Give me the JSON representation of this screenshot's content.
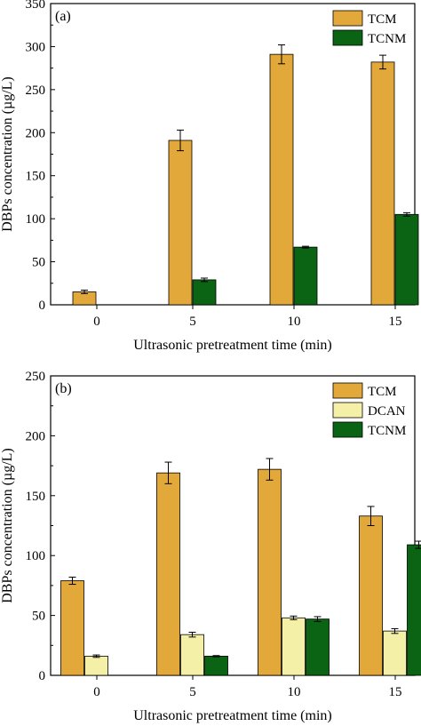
{
  "chart_data": [
    {
      "type": "bar",
      "panel_label": "(a)",
      "xlabel": "Ultrasonic pretreatment time (min)",
      "ylabel": "DBPs concentration (µg/L)",
      "categories": [
        "0",
        "5",
        "10",
        "15"
      ],
      "ylim": [
        0,
        350
      ],
      "yticks": [
        0,
        50,
        100,
        150,
        200,
        250,
        300,
        350
      ],
      "legend_position": "top-right",
      "grid": false,
      "series": [
        {
          "name": "TCM",
          "color": "#E2A93A",
          "values": [
            15,
            191,
            291,
            282
          ],
          "errors": [
            2,
            12,
            11,
            8
          ]
        },
        {
          "name": "TCNM",
          "color": "#0A6413",
          "values": [
            null,
            29,
            67,
            105
          ],
          "errors": [
            null,
            2,
            1,
            2
          ]
        }
      ]
    },
    {
      "type": "bar",
      "panel_label": "(b)",
      "xlabel": "Ultrasonic pretreatment time (min)",
      "ylabel": "DBPs concentration (µg/L)",
      "categories": [
        "0",
        "5",
        "10",
        "15"
      ],
      "ylim": [
        0,
        250
      ],
      "yticks": [
        0,
        50,
        100,
        150,
        200,
        250
      ],
      "legend_position": "top-right",
      "grid": false,
      "series": [
        {
          "name": "TCM",
          "color": "#E2A93A",
          "values": [
            79,
            169,
            172,
            133
          ],
          "errors": [
            3,
            9,
            9,
            8
          ]
        },
        {
          "name": "DCAN",
          "color": "#F5F0A8",
          "values": [
            16,
            34,
            48,
            37
          ],
          "errors": [
            1,
            2,
            1.5,
            2
          ]
        },
        {
          "name": "TCNM",
          "color": "#0A6413",
          "values": [
            null,
            16,
            47,
            109
          ],
          "errors": [
            null,
            0.5,
            2,
            3
          ]
        }
      ]
    }
  ]
}
